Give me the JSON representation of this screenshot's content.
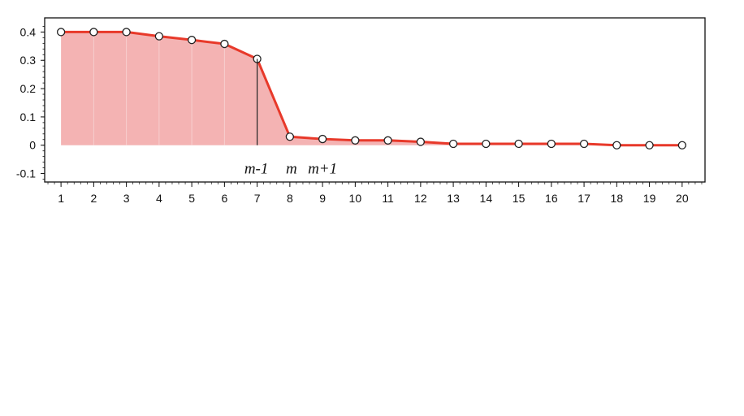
{
  "chart_data": {
    "type": "area",
    "x": [
      1,
      2,
      3,
      4,
      5,
      6,
      7,
      8,
      9,
      10,
      11,
      12,
      13,
      14,
      15,
      16,
      17,
      18,
      19,
      20
    ],
    "series": [
      {
        "values": [
          0.4,
          0.4,
          0.4,
          0.385,
          0.372,
          0.358,
          0.305,
          0.03,
          0.022,
          0.017,
          0.017,
          0.012,
          0.005,
          0.005,
          0.005,
          0.005,
          0.005,
          0.0,
          0.0,
          0.0
        ]
      }
    ],
    "xticks": [
      "1",
      "2",
      "3",
      "4",
      "5",
      "6",
      "7",
      "8",
      "9",
      "10",
      "11",
      "12",
      "13",
      "14",
      "15",
      "16",
      "17",
      "18",
      "19",
      "20"
    ],
    "yticks": [
      "0.4",
      "0.3",
      "0.2",
      "0.1",
      "0",
      "-0.1"
    ],
    "ylim": [
      -0.13,
      0.45
    ],
    "xlim": [
      0.5,
      20.7
    ],
    "title": "",
    "xlabel": "",
    "ylabel": "",
    "grid": false,
    "annotations": [
      {
        "text": "m-1",
        "x": 7
      },
      {
        "text": "m",
        "x": 8
      },
      {
        "text": "m+1",
        "x": 9
      }
    ],
    "colors": {
      "line": "#e8392a",
      "fill": "#f4b3b3",
      "marker_fill": "#ffffff",
      "marker_stroke": "#222222"
    }
  }
}
